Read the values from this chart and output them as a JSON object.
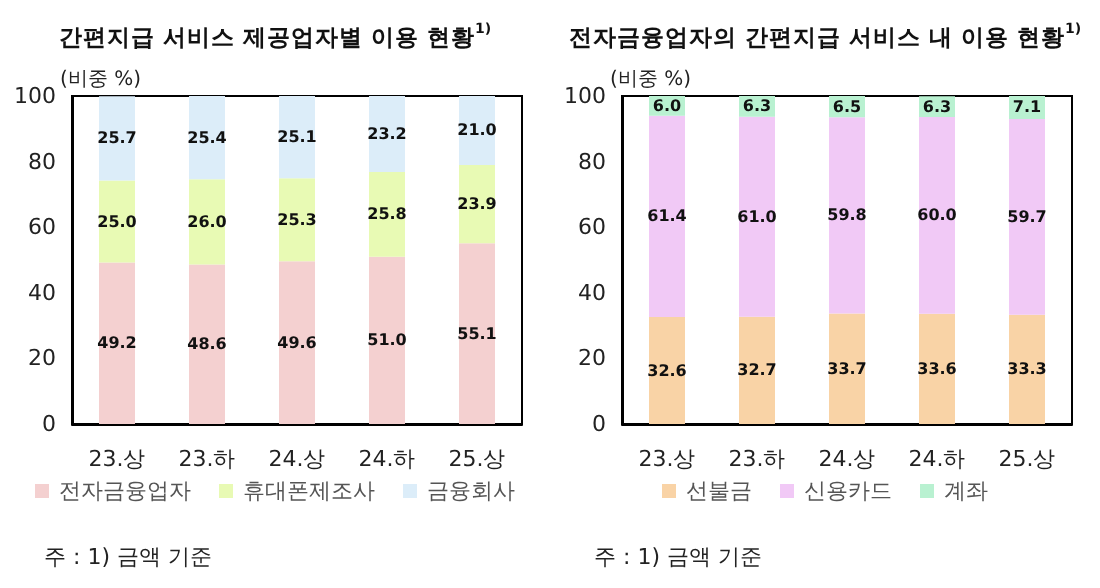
{
  "chart_data": [
    {
      "type": "bar",
      "title": "간편지급 서비스 제공업자별 이용 현황$^{1)}$",
      "ylabel": "(비중 %)",
      "categories": [
        "23.상",
        "23.하",
        "24.상",
        "24.하",
        "25.상"
      ],
      "stacked": true,
      "legend": "bottom",
      "grid": false,
      "ylim": [
        0,
        100
      ],
      "yticks": [
        0,
        20,
        40,
        60,
        80,
        100
      ],
      "annotations": [
        "주 : 1) 금액 기준"
      ],
      "series": [
        {
          "name": "전자금융업자",
          "color": "#f4d0d0",
          "values": [
            49.2,
            48.6,
            49.6,
            51,
            55.1
          ],
          "value_labels": [
            "49.2",
            "48.6",
            "49.6",
            "51.0",
            "55.1"
          ]
        },
        {
          "name": "휴대폰제조사",
          "color": "#e8fab4",
          "values": [
            25,
            26,
            25.3,
            25.8,
            23.9
          ],
          "value_labels": [
            "25.0",
            "26.0",
            "25.3",
            "25.8",
            "23.9"
          ]
        },
        {
          "name": "금융회사",
          "color": "#dcedf9",
          "values": [
            25.7,
            25.4,
            25.1,
            23.2,
            21
          ],
          "value_labels": [
            "25.7",
            "25.4",
            "25.1",
            "23.2",
            "21.0"
          ]
        }
      ]
    },
    {
      "type": "bar",
      "title": "전자금융업자의 간편지급 서비스 내 이용 현황$^{1)}$",
      "ylabel": "(비중 %)",
      "categories": [
        "23.상",
        "23.하",
        "24.상",
        "24.하",
        "25.상"
      ],
      "stacked": true,
      "legend": "bottom",
      "grid": false,
      "ylim": [
        0,
        100
      ],
      "yticks": [
        0,
        20,
        40,
        60,
        80,
        100
      ],
      "annotations": [
        "주 : 1) 금액 기준"
      ],
      "series": [
        {
          "name": "선불금",
          "color": "#f9d3a6",
          "values": [
            32.6,
            32.7,
            33.7,
            33.6,
            33.3
          ],
          "value_labels": [
            "32.6",
            "32.7",
            "33.7",
            "33.6",
            "33.3"
          ]
        },
        {
          "name": "신용카드",
          "color": "#f1c9f6",
          "values": [
            61.4,
            61,
            59.8,
            60,
            59.7
          ],
          "value_labels": [
            "61.4",
            "61.0",
            "59.8",
            "60.0",
            "59.7"
          ]
        },
        {
          "name": "계좌",
          "color": "#b9f1d1",
          "values": [
            6,
            6.3,
            6.5,
            6.3,
            7.1
          ],
          "value_labels": [
            "6.0",
            "6.3",
            "6.5",
            "6.3",
            "7.1"
          ]
        }
      ]
    }
  ]
}
